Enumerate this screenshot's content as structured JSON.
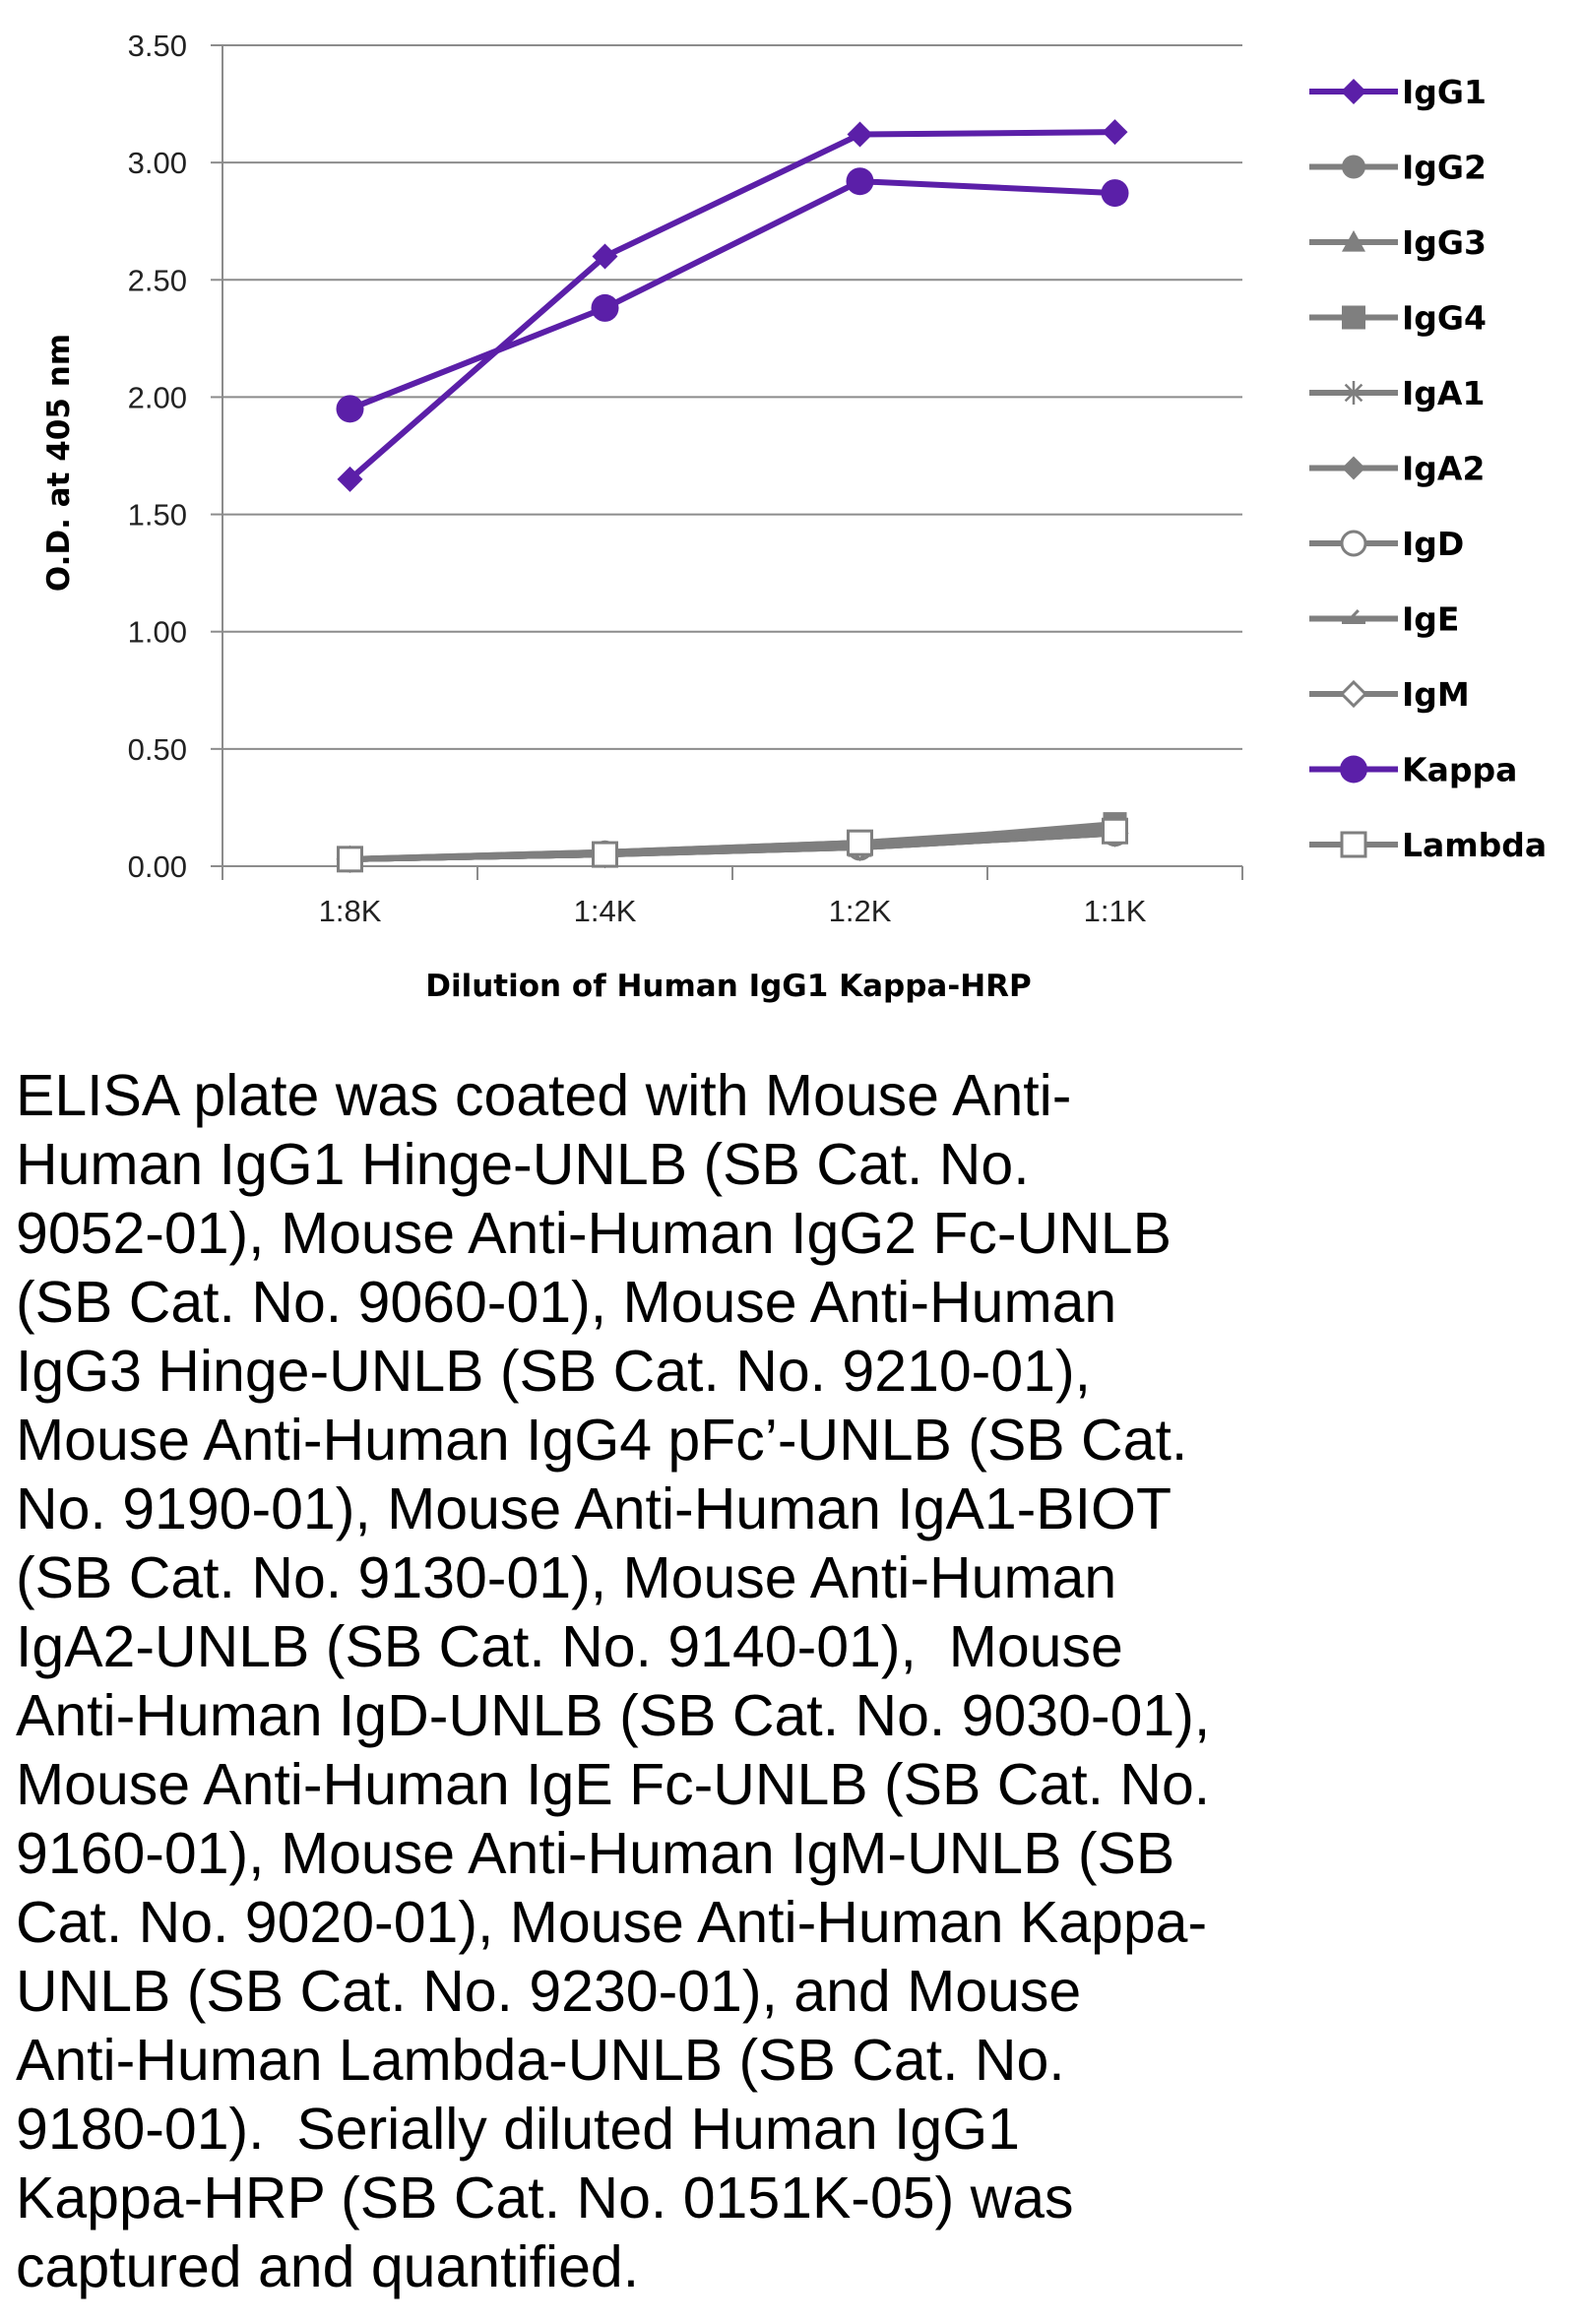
{
  "chart_data": {
    "type": "line",
    "xlabel": "Dilution of Human IgG1 Kappa-HRP",
    "ylabel": "O.D. at 405 nm",
    "categories": [
      "1:8K",
      "1:4K",
      "1:2K",
      "1:1K"
    ],
    "ylim": [
      0,
      3.5
    ],
    "yticks": [
      "0.00",
      "0.50",
      "1.00",
      "1.50",
      "2.00",
      "2.50",
      "3.00",
      "3.50"
    ],
    "grid": true,
    "legend_position": "right",
    "series": [
      {
        "name": "IgG1",
        "values": [
          1.65,
          2.6,
          3.12,
          3.13
        ],
        "color": "#5b1fa8",
        "marker": "diamond"
      },
      {
        "name": "IgG2",
        "values": [
          0.03,
          0.06,
          0.1,
          0.16
        ],
        "color": "#7f7f7f",
        "marker": "circle"
      },
      {
        "name": "IgG3",
        "values": [
          0.03,
          0.06,
          0.1,
          0.17
        ],
        "color": "#7f7f7f",
        "marker": "triangle"
      },
      {
        "name": "IgG4",
        "values": [
          0.03,
          0.05,
          0.09,
          0.18
        ],
        "color": "#7f7f7f",
        "marker": "square"
      },
      {
        "name": "IgA1",
        "values": [
          0.03,
          0.05,
          0.09,
          0.15
        ],
        "color": "#7f7f7f",
        "marker": "star"
      },
      {
        "name": "IgA2",
        "values": [
          0.03,
          0.05,
          0.09,
          0.15
        ],
        "color": "#7f7f7f",
        "marker": "diamond"
      },
      {
        "name": "IgD",
        "values": [
          0.03,
          0.05,
          0.08,
          0.14
        ],
        "color": "#7f7f7f",
        "marker": "open-circle"
      },
      {
        "name": "IgE",
        "values": [
          0.03,
          0.05,
          0.08,
          0.14
        ],
        "color": "#7f7f7f",
        "marker": "dash"
      },
      {
        "name": "IgM",
        "values": [
          0.03,
          0.05,
          0.08,
          0.14
        ],
        "color": "#7f7f7f",
        "marker": "open-diamond"
      },
      {
        "name": "Kappa",
        "values": [
          1.95,
          2.38,
          2.92,
          2.87
        ],
        "color": "#5b1fa8",
        "marker": "circle"
      },
      {
        "name": "Lambda",
        "values": [
          0.03,
          0.05,
          0.1,
          0.15
        ],
        "color": "#7f7f7f",
        "marker": "open-square"
      }
    ]
  },
  "caption": "ELISA plate was coated with Mouse Anti-\nHuman IgG1 Hinge-UNLB (SB Cat. No.\n9052-01), Mouse Anti-Human IgG2 Fc-UNLB\n(SB Cat. No. 9060-01), Mouse Anti-Human\nIgG3 Hinge-UNLB (SB Cat. No. 9210-01),\nMouse Anti-Human IgG4 pFc’-UNLB (SB Cat.\nNo. 9190-01), Mouse Anti-Human IgA1-BIOT\n(SB Cat. No. 9130-01), Mouse Anti-Human\nIgA2-UNLB (SB Cat. No. 9140-01),  Mouse\nAnti-Human IgD-UNLB (SB Cat. No. 9030-01),\nMouse Anti-Human IgE Fc-UNLB (SB Cat. No.\n9160-01), Mouse Anti-Human IgM-UNLB (SB\nCat. No. 9020-01), Mouse Anti-Human Kappa-\nUNLB (SB Cat. No. 9230-01), and Mouse\nAnti-Human Lambda-UNLB (SB Cat. No.\n9180-01).  Serially diluted Human IgG1\nKappa-HRP (SB Cat. No. 0151K-05) was\ncaptured and quantified."
}
